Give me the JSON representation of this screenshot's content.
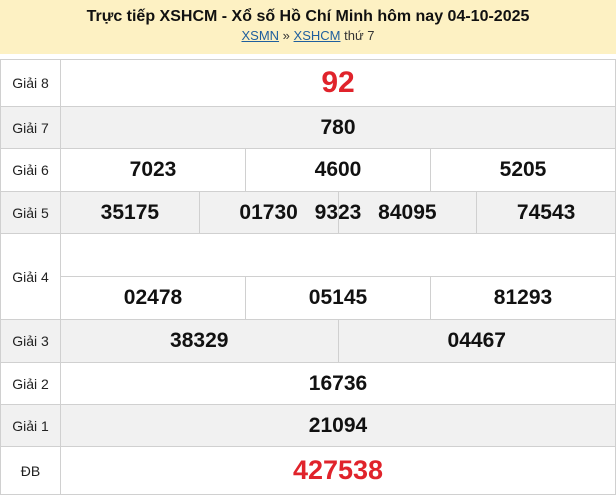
{
  "header": {
    "title": "Trực tiếp XSHCM - Xổ số Hồ Chí Minh hôm nay 04-10-2025",
    "breadcrumb": [
      {
        "label": "XSMN"
      },
      {
        "label": "XSHCM"
      }
    ],
    "separator": "»",
    "suffix": "thứ 7"
  },
  "prizes": [
    {
      "label": "Giải 8",
      "numbers": [
        "92"
      ]
    },
    {
      "label": "Giải 7",
      "numbers": [
        "780"
      ]
    },
    {
      "label": "Giải 6",
      "numbers": [
        "7023",
        "4600",
        "5205"
      ]
    },
    {
      "label": "Giải 5",
      "numbers": [
        "9323"
      ]
    },
    {
      "label": "Giải 4",
      "numbers": [
        "35175",
        "01730",
        "84095",
        "74543",
        "02478",
        "05145",
        "81293"
      ]
    },
    {
      "label": "Giải 3",
      "numbers": [
        "38329",
        "04467"
      ]
    },
    {
      "label": "Giải 2",
      "numbers": [
        "16736"
      ]
    },
    {
      "label": "Giải 1",
      "numbers": [
        "21094"
      ]
    },
    {
      "label": "ĐB",
      "numbers": [
        "427538"
      ]
    }
  ],
  "colors": {
    "header_bg": "#fdf1c3",
    "highlight": "#e0232b",
    "link": "#1f5f9e"
  }
}
